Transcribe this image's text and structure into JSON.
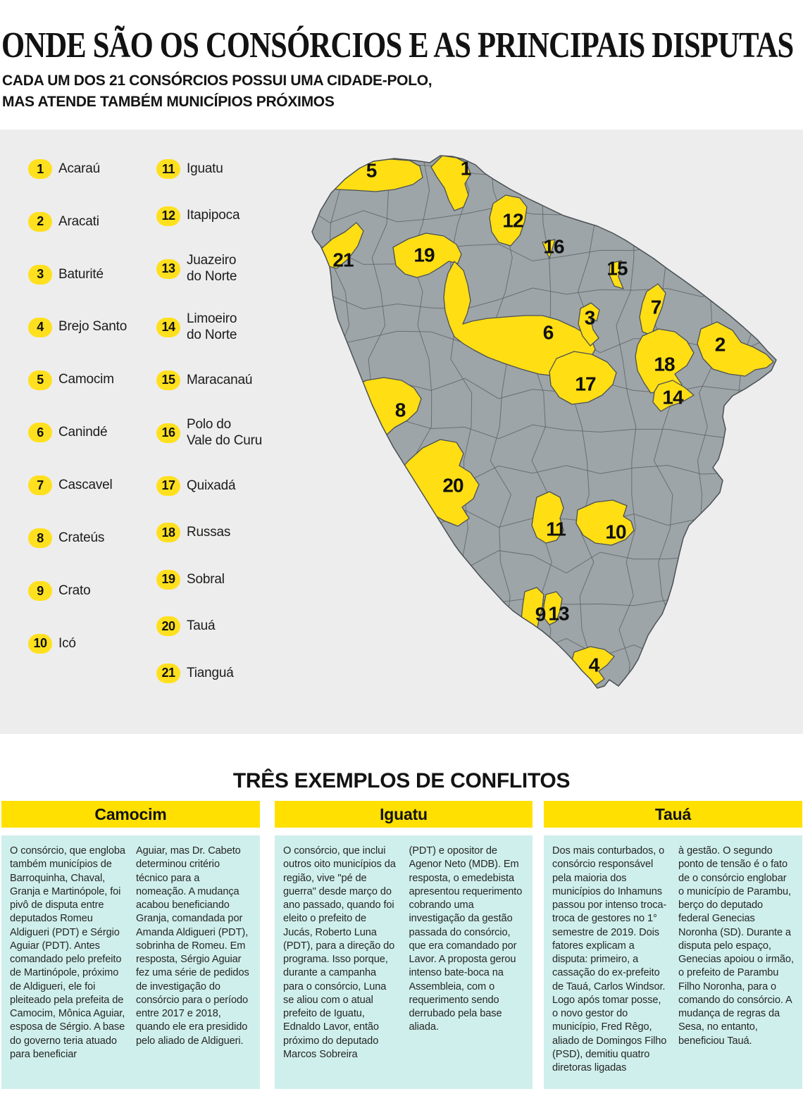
{
  "title": "ONDE SÃO OS CONSÓRCIOS E AS PRINCIPAIS DISPUTAS",
  "subtitle_line1": "CADA UM DOS 21 CONSÓRCIOS POSSUI UMA CIDADE-POLO,",
  "subtitle_line2": "MAS ATENDE TAMBÉM MUNICÍPIOS PRÓXIMOS",
  "colors": {
    "accent_yellow": "#ffe000",
    "map_yellow": "#ffde14",
    "map_gray": "#9ea5a8",
    "panel_background": "#ededee",
    "card_cyan": "#cfefec",
    "border_dark": "#4a5053"
  },
  "legend": {
    "column1": [
      {
        "number": "1",
        "label": "Acaraú"
      },
      {
        "number": "2",
        "label": "Aracati"
      },
      {
        "number": "3",
        "label": "Baturité"
      },
      {
        "number": "4",
        "label": "Brejo Santo"
      },
      {
        "number": "5",
        "label": "Camocim"
      },
      {
        "number": "6",
        "label": "Canindé"
      },
      {
        "number": "7",
        "label": "Cascavel"
      },
      {
        "number": "8",
        "label": "Crateús"
      },
      {
        "number": "9",
        "label": "Crato"
      },
      {
        "number": "10",
        "label": "Icó"
      }
    ],
    "column2": [
      {
        "number": "11",
        "label": "Iguatu"
      },
      {
        "number": "12",
        "label": "Itapipoca"
      },
      {
        "number": "13",
        "label": "Juazeiro\ndo Norte"
      },
      {
        "number": "14",
        "label": "Limoeiro\ndo Norte"
      },
      {
        "number": "15",
        "label": "Maracanaú"
      },
      {
        "number": "16",
        "label": "Polo do\nVale do Curu"
      },
      {
        "number": "17",
        "label": "Quixadá"
      },
      {
        "number": "18",
        "label": "Russas"
      },
      {
        "number": "19",
        "label": "Sobral"
      },
      {
        "number": "20",
        "label": "Tauá"
      },
      {
        "number": "21",
        "label": "Tianguá"
      }
    ]
  },
  "map": {
    "markers": [
      "1",
      "2",
      "3",
      "4",
      "5",
      "6",
      "7",
      "8",
      "9",
      "10",
      "11",
      "12",
      "13",
      "14",
      "15",
      "16",
      "17",
      "18",
      "19",
      "20",
      "21"
    ]
  },
  "conflicts": {
    "heading": "TRÊS EXEMPLOS DE CONFLITOS",
    "cards": [
      {
        "title": "Camocim",
        "col1": "O consórcio, que engloba também municípios de Barroquinha, Chaval, Granja e Martinópole, foi pivô de disputa entre deputados Romeu Aldigueri (PDT) e Sérgio Aguiar (PDT). Antes comandado pelo prefeito de Martinópole, próximo de Aldigueri, ele foi pleiteado pela prefeita de Camocim, Mônica Aguiar, esposa de Sérgio. A base do governo teria atuado para beneficiar",
        "col2": "Aguiar, mas Dr. Cabeto determinou critério técnico para a nomeação. A mudança acabou beneficiando Granja, comandada por Amanda Aldigueri (PDT), sobrinha de Romeu. Em resposta, Sérgio Aguiar fez uma série de pedidos de investigação do consórcio para o período entre 2017 e 2018, quando ele era presidido pelo aliado de Aldigueri."
      },
      {
        "title": "Iguatu",
        "col1": "O consórcio, que inclui outros oito municípios da região, vive \"pé de guerra\" desde março do ano passado, quando foi eleito o prefeito de Jucás, Roberto Luna (PDT), para a direção do programa. Isso porque, durante a campanha para o consórcio, Luna se aliou com o atual prefeito de Iguatu, Ednaldo Lavor, então próximo do deputado Marcos Sobreira",
        "col2": "(PDT) e opositor de Agenor Neto (MDB). Em resposta, o emedebista apresentou requerimento cobrando uma investigação da gestão passada do consórcio, que era comandado por Lavor. A proposta gerou intenso bate-boca na Assembleia, com o requerimento sendo derrubado pela base aliada."
      },
      {
        "title": "Tauá",
        "col1": "Dos mais conturbados, o consórcio responsável pela maioria dos municípios do Inhamuns passou por intenso troca-troca de gestores no 1° semestre de 2019. Dois fatores explicam a disputa: primeiro, a cassação do ex-prefeito de Tauá, Carlos Windsor. Logo após tomar posse, o novo gestor do município, Fred Rêgo, aliado de Domingos Filho (PSD), demitiu quatro diretoras ligadas",
        "col2": "à gestão. O segundo ponto de tensão é o fato de o consórcio englobar o município de Parambu, berço do deputado federal Genecias Noronha (SD). Durante a disputa pelo espaço, Genecias apoiou o irmão, o prefeito de Parambu Filho Noronha, para o comando do consórcio. A mudança de regras da Sesa, no entanto, beneficiou Tauá."
      }
    ]
  }
}
